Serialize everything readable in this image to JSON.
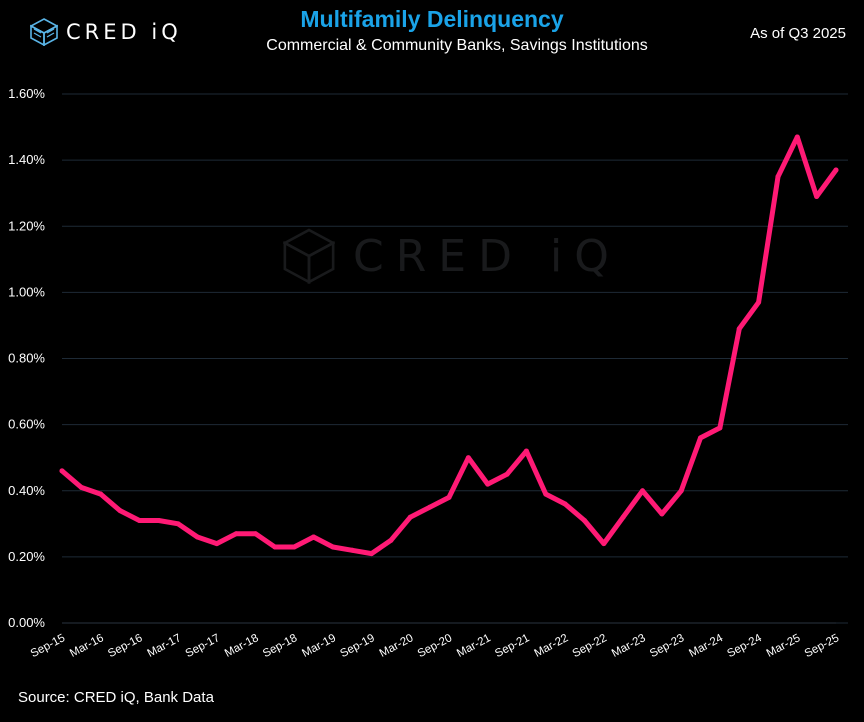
{
  "header": {
    "brand": "CRED iQ",
    "title": "Multifamily Delinquency",
    "subtitle": "Commercial & Community Banks, Savings Institutions",
    "as_of": "As of Q3 2025"
  },
  "footer": {
    "source": "Source:  CRED iQ, Bank Data"
  },
  "colors": {
    "line": "#ff1a75",
    "title": "#1aa3e8",
    "grid": "#1e2a36",
    "background": "#000000",
    "text": "#ffffff"
  },
  "chart_data": {
    "type": "line",
    "title": "Multifamily Delinquency",
    "xlabel": "",
    "ylabel": "",
    "ylim": [
      0,
      1.6
    ],
    "y_ticks": [
      "0.00%",
      "0.20%",
      "0.40%",
      "0.60%",
      "0.80%",
      "1.00%",
      "1.20%",
      "1.40%",
      "1.60%"
    ],
    "grid": true,
    "x_labels": [
      "Sep-15",
      "Mar-16",
      "Sep-16",
      "Mar-17",
      "Sep-17",
      "Mar-18",
      "Sep-18",
      "Mar-19",
      "Sep-19",
      "Mar-20",
      "Sep-20",
      "Mar-21",
      "Sep-21",
      "Mar-22",
      "Sep-22",
      "Mar-23",
      "Sep-23",
      "Mar-24",
      "Sep-24",
      "Mar-25",
      "Sep-25"
    ],
    "x": [
      "Sep-15",
      "Dec-15",
      "Mar-16",
      "Jun-16",
      "Sep-16",
      "Dec-16",
      "Mar-17",
      "Jun-17",
      "Sep-17",
      "Dec-17",
      "Mar-18",
      "Jun-18",
      "Sep-18",
      "Dec-18",
      "Mar-19",
      "Jun-19",
      "Sep-19",
      "Dec-19",
      "Mar-20",
      "Jun-20",
      "Sep-20",
      "Dec-20",
      "Mar-21",
      "Jun-21",
      "Sep-21",
      "Dec-21",
      "Mar-22",
      "Jun-22",
      "Sep-22",
      "Dec-22",
      "Mar-23",
      "Jun-23",
      "Sep-23",
      "Dec-23",
      "Mar-24",
      "Jun-24",
      "Sep-24",
      "Dec-24",
      "Mar-25",
      "Jun-25",
      "Sep-25"
    ],
    "series": [
      {
        "values": [
          0.46,
          0.41,
          0.39,
          0.34,
          0.31,
          0.31,
          0.3,
          0.26,
          0.24,
          0.27,
          0.27,
          0.23,
          0.23,
          0.26,
          0.23,
          0.22,
          0.21,
          0.25,
          0.32,
          0.35,
          0.38,
          0.5,
          0.42,
          0.45,
          0.52,
          0.39,
          0.36,
          0.31,
          0.24,
          0.32,
          0.4,
          0.33,
          0.4,
          0.56,
          0.59,
          0.89,
          0.97,
          1.35,
          1.47,
          1.29,
          1.37
        ]
      }
    ]
  }
}
